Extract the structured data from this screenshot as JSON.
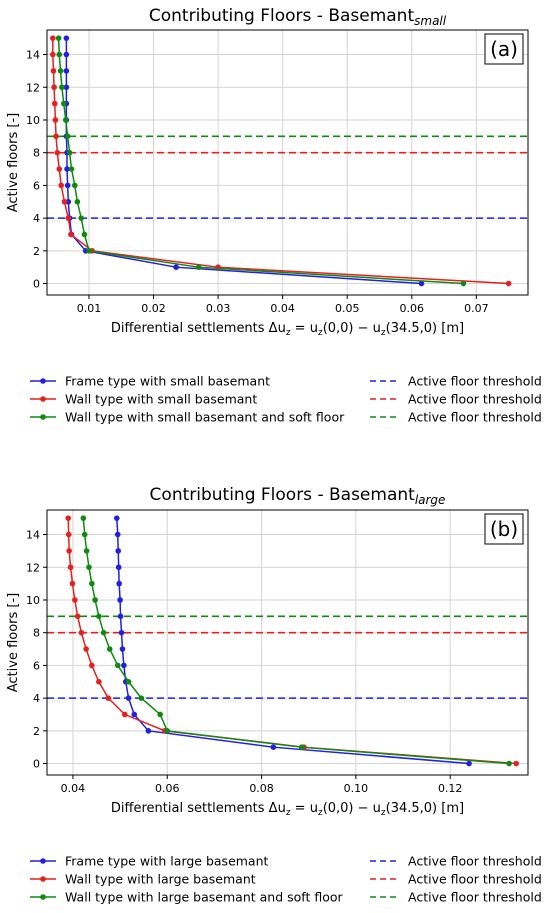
{
  "chart_data": [
    {
      "type": "line",
      "panel_label": "(a)",
      "title": "Contributing Floors - Basemant",
      "title_subscript": "small",
      "xlabel": "Differential settlements Δu_z = u_z(0,0) − u_z(34.5,0) [m]",
      "xlabel_parts": {
        "lead": "Differential settlements Δu",
        "sub1": "z",
        "mid1": " = u",
        "sub2": "z",
        "mid2": "(0,0) − u",
        "sub3": "z",
        "tail": "(34.5,0) [m]"
      },
      "ylabel": "Active floors [-]",
      "xlim": [
        0.0035,
        0.078
      ],
      "ylim": [
        -0.7,
        15.5
      ],
      "xticks": [
        0.01,
        0.02,
        0.03,
        0.04,
        0.05,
        0.06,
        0.07
      ],
      "xtick_labels": [
        "0.01",
        "0.02",
        "0.03",
        "0.04",
        "0.05",
        "0.06",
        "0.07"
      ],
      "yticks": [
        0,
        2,
        4,
        6,
        8,
        10,
        12,
        14
      ],
      "ytick_labels": [
        "0",
        "2",
        "4",
        "6",
        "8",
        "10",
        "12",
        "14"
      ],
      "grid": true,
      "legend_position": "below",
      "y": [
        0,
        1,
        2,
        3,
        4,
        5,
        6,
        7,
        8,
        9,
        10,
        11,
        12,
        13,
        14,
        15
      ],
      "series": [
        {
          "name": "Frame type with small basemant",
          "color": "#1f1fe6",
          "values": [
            0.0615,
            0.0235,
            0.0095,
            0.0073,
            0.007,
            0.0068,
            0.0067,
            0.0066,
            0.0066,
            0.0065,
            0.0065,
            0.0065,
            0.0065,
            0.0065,
            0.0065,
            0.0065
          ]
        },
        {
          "name": "Wall type with small basemant",
          "color": "#e61f1f",
          "values": [
            0.075,
            0.03,
            0.0105,
            0.0072,
            0.0068,
            0.0062,
            0.0057,
            0.0054,
            0.0051,
            0.0049,
            0.0048,
            0.0047,
            0.0046,
            0.0045,
            0.0044,
            0.0044
          ]
        },
        {
          "name": "Wall type with small basemant and soft floor",
          "color": "#0f8a0f",
          "values": [
            0.068,
            0.027,
            0.01,
            0.0093,
            0.0088,
            0.0082,
            0.0078,
            0.0073,
            0.007,
            0.0067,
            0.0064,
            0.0061,
            0.0058,
            0.0056,
            0.0054,
            0.0053
          ]
        }
      ],
      "thresholds": [
        {
          "label": "Active floor threshold",
          "y": 4,
          "color": "#1f1fe6"
        },
        {
          "label": "Active floor threshold",
          "y": 8,
          "color": "#e61f1f"
        },
        {
          "label": "Active floor threshold",
          "y": 9,
          "color": "#0f8a0f"
        }
      ]
    },
    {
      "type": "line",
      "panel_label": "(b)",
      "title": "Contributing Floors - Basemant",
      "title_subscript": "large",
      "xlabel": "Differential settlements Δu_z = u_z(0,0) − u_z(34.5,0) [m]",
      "xlabel_parts": {
        "lead": "Differential settlements Δu",
        "sub1": "z",
        "mid1": " = u",
        "sub2": "z",
        "mid2": "(0,0) − u",
        "sub3": "z",
        "tail": "(34.5,0) [m]"
      },
      "ylabel": "Active floors [-]",
      "xlim": [
        0.0345,
        0.1365
      ],
      "ylim": [
        -0.7,
        15.5
      ],
      "xticks": [
        0.04,
        0.06,
        0.08,
        0.1,
        0.12
      ],
      "xtick_labels": [
        "0.04",
        "0.06",
        "0.08",
        "0.10",
        "0.12"
      ],
      "yticks": [
        0,
        2,
        4,
        6,
        8,
        10,
        12,
        14
      ],
      "ytick_labels": [
        "0",
        "2",
        "4",
        "6",
        "8",
        "10",
        "12",
        "14"
      ],
      "grid": true,
      "legend_position": "below",
      "y": [
        0,
        1,
        2,
        3,
        4,
        5,
        6,
        7,
        8,
        9,
        10,
        11,
        12,
        13,
        14,
        15
      ],
      "series": [
        {
          "name": "Frame type with large basemant",
          "color": "#1f1fe6",
          "values": [
            0.124,
            0.0825,
            0.056,
            0.053,
            0.0518,
            0.0512,
            0.0508,
            0.0505,
            0.0503,
            0.0501,
            0.05,
            0.0498,
            0.0497,
            0.0496,
            0.0495,
            0.0493
          ]
        },
        {
          "name": "Wall type with large basemant",
          "color": "#e61f1f",
          "values": [
            0.134,
            0.089,
            0.0595,
            0.051,
            0.0475,
            0.0455,
            0.044,
            0.0428,
            0.0418,
            0.041,
            0.0404,
            0.0399,
            0.0395,
            0.0392,
            0.0391,
            0.039
          ]
        },
        {
          "name": "Wall type with large basemant and soft floor",
          "color": "#0f8a0f",
          "values": [
            0.1325,
            0.0885,
            0.06,
            0.0585,
            0.0545,
            0.0518,
            0.0495,
            0.0478,
            0.0465,
            0.0455,
            0.0447,
            0.044,
            0.0434,
            0.0429,
            0.0425,
            0.0422
          ]
        }
      ],
      "thresholds": [
        {
          "label": "Active floor threshold",
          "y": 4,
          "color": "#1f1fe6"
        },
        {
          "label": "Active floor threshold",
          "y": 8,
          "color": "#e61f1f"
        },
        {
          "label": "Active floor threshold",
          "y": 9,
          "color": "#0f8a0f"
        }
      ]
    }
  ]
}
